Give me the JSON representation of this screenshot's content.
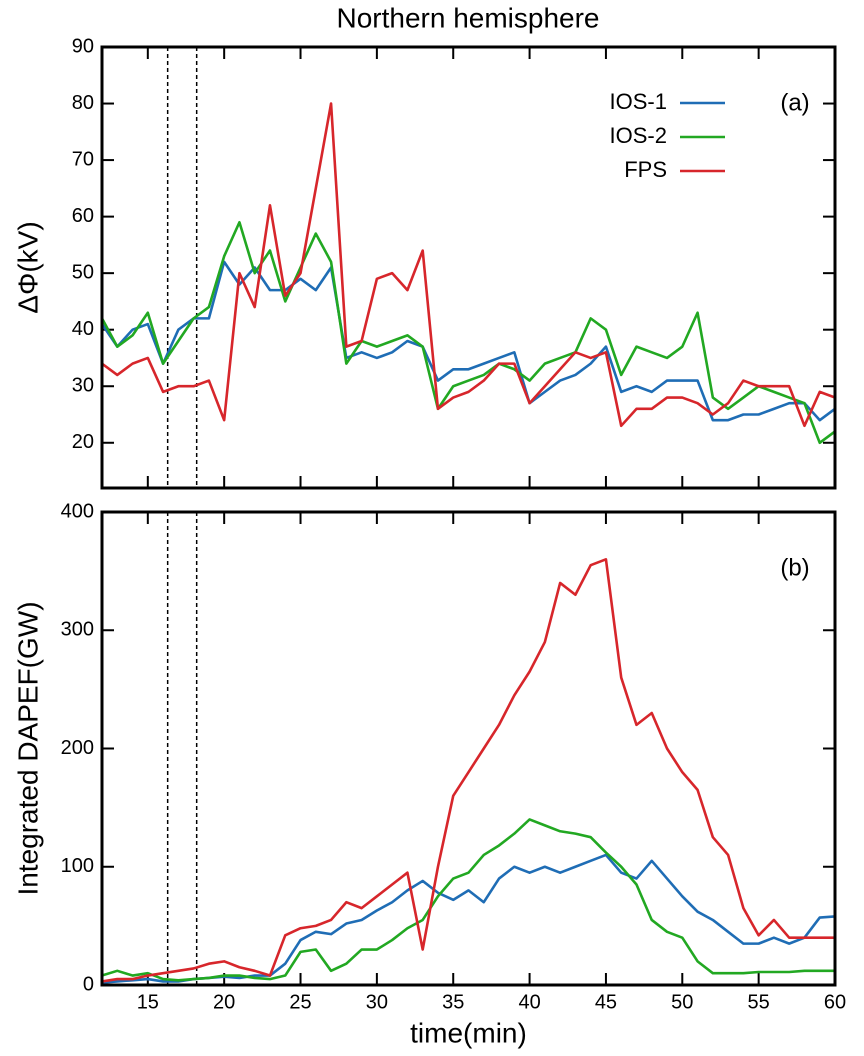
{
  "chart_data": [
    {
      "type": "line",
      "title": "Northern hemisphere",
      "ylabel": "ΔΦ(kV)",
      "panel_label": "(a)",
      "legend": "top right",
      "x": [
        12,
        13,
        14,
        15,
        16,
        17,
        18,
        19,
        20,
        21,
        22,
        23,
        24,
        25,
        26,
        27,
        28,
        29,
        30,
        31,
        32,
        33,
        34,
        35,
        36,
        37,
        38,
        39,
        40,
        41,
        42,
        43,
        44,
        45,
        46,
        47,
        48,
        49,
        50,
        51,
        52,
        53,
        54,
        55,
        56,
        57,
        58,
        59,
        60
      ],
      "series": [
        {
          "name": "IOS-1",
          "color": "#1f6db5",
          "values": [
            41,
            37,
            40,
            41,
            34,
            40,
            42,
            42,
            52,
            48,
            51,
            47,
            47,
            49,
            47,
            51,
            35,
            36,
            35,
            36,
            38,
            37,
            31,
            33,
            33,
            34,
            35,
            36,
            27,
            29,
            31,
            32,
            34,
            37,
            29,
            30,
            29,
            31,
            31,
            31,
            24,
            24,
            25,
            25,
            26,
            27,
            27,
            24,
            26
          ]
        },
        {
          "name": "IOS-2",
          "color": "#22a822",
          "values": [
            42,
            37,
            39,
            43,
            34,
            38,
            42,
            44,
            53,
            59,
            50,
            54,
            45,
            51,
            57,
            52,
            34,
            38,
            37,
            38,
            39,
            37,
            26,
            30,
            31,
            32,
            34,
            33,
            31,
            34,
            35,
            36,
            42,
            40,
            32,
            37,
            36,
            35,
            37,
            43,
            28,
            26,
            28,
            30,
            29,
            28,
            27,
            20,
            22
          ]
        },
        {
          "name": "FPS",
          "color": "#d7262b",
          "values": [
            34,
            32,
            34,
            35,
            29,
            30,
            30,
            31,
            24,
            50,
            44,
            62,
            46,
            50,
            65,
            80,
            37,
            38,
            49,
            50,
            47,
            54,
            26,
            28,
            29,
            31,
            34,
            34,
            27,
            30,
            33,
            36,
            35,
            36,
            23,
            26,
            26,
            28,
            28,
            27,
            25,
            27,
            31,
            30,
            30,
            30,
            23,
            29,
            28
          ]
        }
      ],
      "xlim": [
        12,
        60
      ],
      "xticks": [
        15,
        20,
        25,
        30,
        35,
        40,
        45,
        50,
        55,
        60
      ],
      "ylim": [
        12,
        90
      ],
      "yticks": [
        20,
        30,
        40,
        50,
        60,
        70,
        80,
        90
      ],
      "vlines": [
        16.3,
        18.2
      ]
    },
    {
      "type": "line",
      "xlabel": "time(min)",
      "ylabel": "Integrated DAPEF(GW)",
      "panel_label": "(b)",
      "x": [
        12,
        13,
        14,
        15,
        16,
        17,
        18,
        19,
        20,
        21,
        22,
        23,
        24,
        25,
        26,
        27,
        28,
        29,
        30,
        31,
        32,
        33,
        34,
        35,
        36,
        37,
        38,
        39,
        40,
        41,
        42,
        43,
        44,
        45,
        46,
        47,
        48,
        49,
        50,
        51,
        52,
        53,
        54,
        55,
        56,
        57,
        58,
        59,
        60
      ],
      "series": [
        {
          "name": "IOS-1",
          "color": "#1f6db5",
          "values": [
            2,
            3,
            4,
            5,
            3,
            3,
            5,
            6,
            7,
            6,
            8,
            8,
            18,
            38,
            45,
            43,
            52,
            55,
            63,
            70,
            80,
            88,
            78,
            72,
            80,
            70,
            90,
            100,
            95,
            100,
            95,
            100,
            105,
            110,
            95,
            90,
            105,
            90,
            75,
            62,
            55,
            45,
            35,
            35,
            40,
            35,
            40,
            57,
            58
          ]
        },
        {
          "name": "IOS-2",
          "color": "#22a822",
          "values": [
            8,
            12,
            8,
            10,
            5,
            4,
            5,
            6,
            8,
            8,
            6,
            5,
            8,
            28,
            30,
            12,
            18,
            30,
            30,
            38,
            48,
            55,
            75,
            90,
            95,
            110,
            118,
            128,
            140,
            135,
            130,
            128,
            125,
            112,
            100,
            85,
            55,
            45,
            40,
            20,
            10,
            10,
            10,
            11,
            11,
            11,
            12,
            12,
            12
          ]
        },
        {
          "name": "FPS",
          "color": "#d7262b",
          "values": [
            3,
            5,
            5,
            8,
            10,
            12,
            14,
            18,
            20,
            15,
            12,
            8,
            42,
            48,
            50,
            55,
            70,
            65,
            75,
            85,
            95,
            30,
            100,
            160,
            180,
            200,
            220,
            245,
            265,
            290,
            340,
            330,
            355,
            360,
            260,
            220,
            230,
            200,
            180,
            165,
            125,
            110,
            65,
            42,
            55,
            40,
            40,
            40,
            40
          ]
        }
      ],
      "xlim": [
        12,
        60
      ],
      "xticks": [
        15,
        20,
        25,
        30,
        35,
        40,
        45,
        50,
        55,
        60
      ],
      "ylim": [
        0,
        400
      ],
      "yticks": [
        0,
        100,
        200,
        300,
        400
      ],
      "vlines": [
        16.3,
        18.2
      ]
    }
  ]
}
